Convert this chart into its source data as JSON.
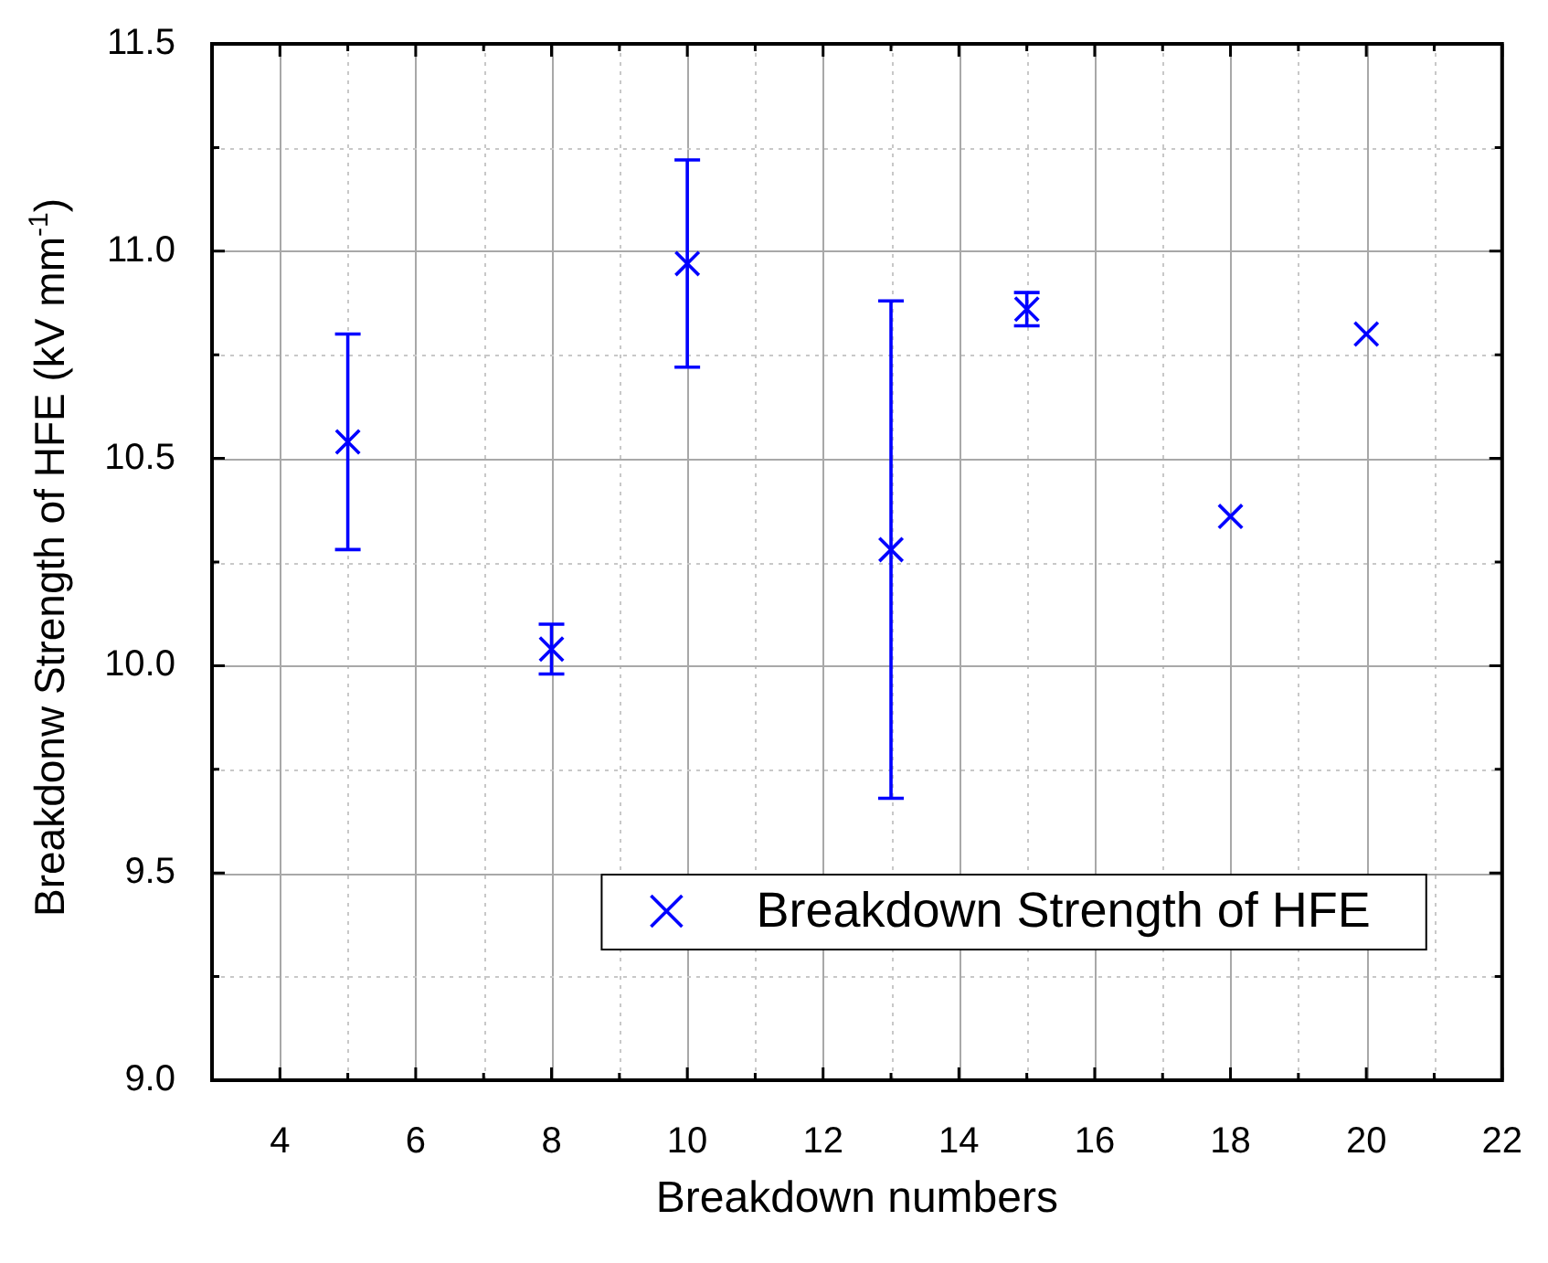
{
  "chart_data": {
    "type": "scatter",
    "xlabel": "Breakdown numbers",
    "ylabel": "Breakdonw Strength of HFE (kV mm$^{-1}$)",
    "x": [
      5,
      8,
      10,
      13,
      15,
      18,
      20
    ],
    "series": [
      {
        "name": "Breakdown Strength of HFE",
        "color": "#0000ff",
        "values": [
          10.54,
          10.04,
          10.97,
          10.28,
          10.86,
          10.36,
          10.8
        ],
        "errors": [
          0.26,
          0.06,
          0.25,
          0.6,
          0.04,
          null,
          null
        ]
      }
    ],
    "xlim": [
      3,
      22
    ],
    "xticks": [
      4,
      {
        "value": 5,
        "label": null
      },
      6,
      {
        "value": 7,
        "label": null
      },
      8,
      {
        "value": 9,
        "label": null
      },
      10,
      {
        "value": 11,
        "label": null
      },
      12,
      {
        "value": 13,
        "label": null
      },
      14,
      {
        "value": 15,
        "label": null
      },
      16,
      {
        "value": 17,
        "label": null
      },
      18,
      {
        "value": 19,
        "label": null
      },
      20,
      {
        "value": 21,
        "label": null
      },
      22
    ],
    "ylim": [
      9,
      11.5
    ],
    "yticks": [
      {
        "value": 9,
        "label": "9.0"
      },
      {
        "value": 9.25,
        "label": null
      },
      {
        "value": 9.5,
        "label": "9.5"
      },
      {
        "value": 9.75,
        "label": null
      },
      {
        "value": 10,
        "label": "10.0"
      },
      {
        "value": 10.25,
        "label": null
      },
      {
        "value": 10.5,
        "label": "10.5"
      },
      {
        "value": 10.75,
        "label": null
      },
      {
        "value": 11,
        "label": "11.0"
      },
      {
        "value": 11.25,
        "label": null
      },
      {
        "value": 11.5,
        "label": "11.5"
      }
    ],
    "grid": true,
    "legend": "bottom right",
    "marker": "cross"
  }
}
